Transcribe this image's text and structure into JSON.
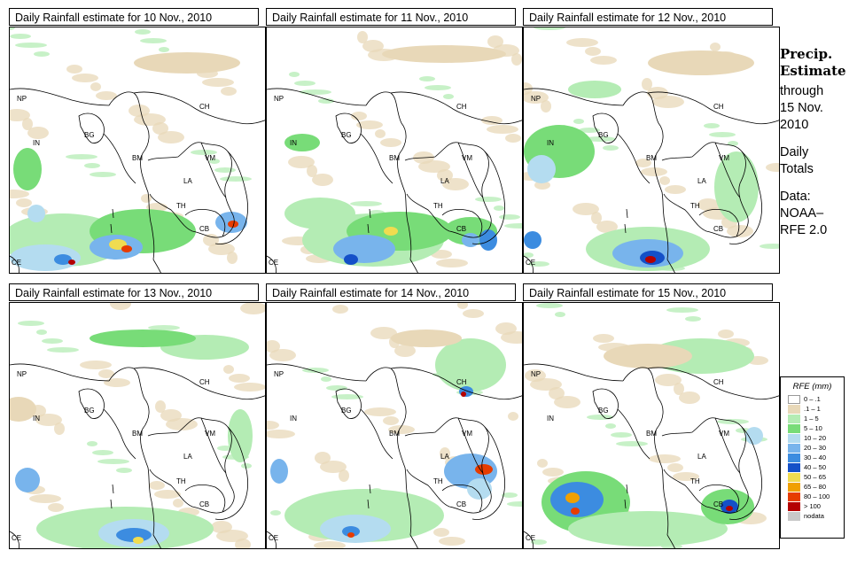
{
  "panels": [
    {
      "title": "Daily Rainfall estimate for  10 Nov., 2010"
    },
    {
      "title": "Daily Rainfall estimate for  11 Nov., 2010"
    },
    {
      "title": "Daily Rainfall estimate for  12 Nov., 2010"
    },
    {
      "title": "Daily Rainfall estimate for  13 Nov., 2010"
    },
    {
      "title": "Daily Rainfall estimate for  14 Nov., 2010"
    },
    {
      "title": "Daily Rainfall estimate for  15 Nov., 2010"
    }
  ],
  "map_labels": {
    "np": "NP",
    "ch": "CH",
    "in": "IN",
    "bg": "BG",
    "bm": "BM",
    "vm": "VM",
    "la": "LA",
    "th": "TH",
    "cb": "CB",
    "ce": "CE"
  },
  "sidebar": {
    "heading_1": "Precip.",
    "heading_2": "Estimate",
    "line_1": "through",
    "line_2": "15 Nov.",
    "line_3": "2010",
    "line_4": "Daily",
    "line_5": "Totals",
    "line_6": "Data:",
    "line_7": "NOAA–",
    "line_8": "RFE 2.0"
  },
  "legend": {
    "title": "RFE (mm)",
    "items": [
      {
        "label": "0 – .1",
        "color": "#ffffff"
      },
      {
        "label": ".1 – 1",
        "color": "#e8d8b8"
      },
      {
        "label": "1 – 5",
        "color": "#b4ecb4"
      },
      {
        "label": "5 – 10",
        "color": "#78dc78"
      },
      {
        "label": "10 – 20",
        "color": "#b4dcf0"
      },
      {
        "label": "20 – 30",
        "color": "#78b4ec"
      },
      {
        "label": "30 – 40",
        "color": "#3c8ce0"
      },
      {
        "label": "40 – 50",
        "color": "#1450c8"
      },
      {
        "label": "50 – 65",
        "color": "#f0dc50"
      },
      {
        "label": "65 – 80",
        "color": "#f0a000"
      },
      {
        "label": "80 – 100",
        "color": "#e63c00"
      },
      {
        "label": "> 100",
        "color": "#b40000"
      },
      {
        "label": "nodata",
        "color": "#c8c8c8"
      }
    ]
  }
}
